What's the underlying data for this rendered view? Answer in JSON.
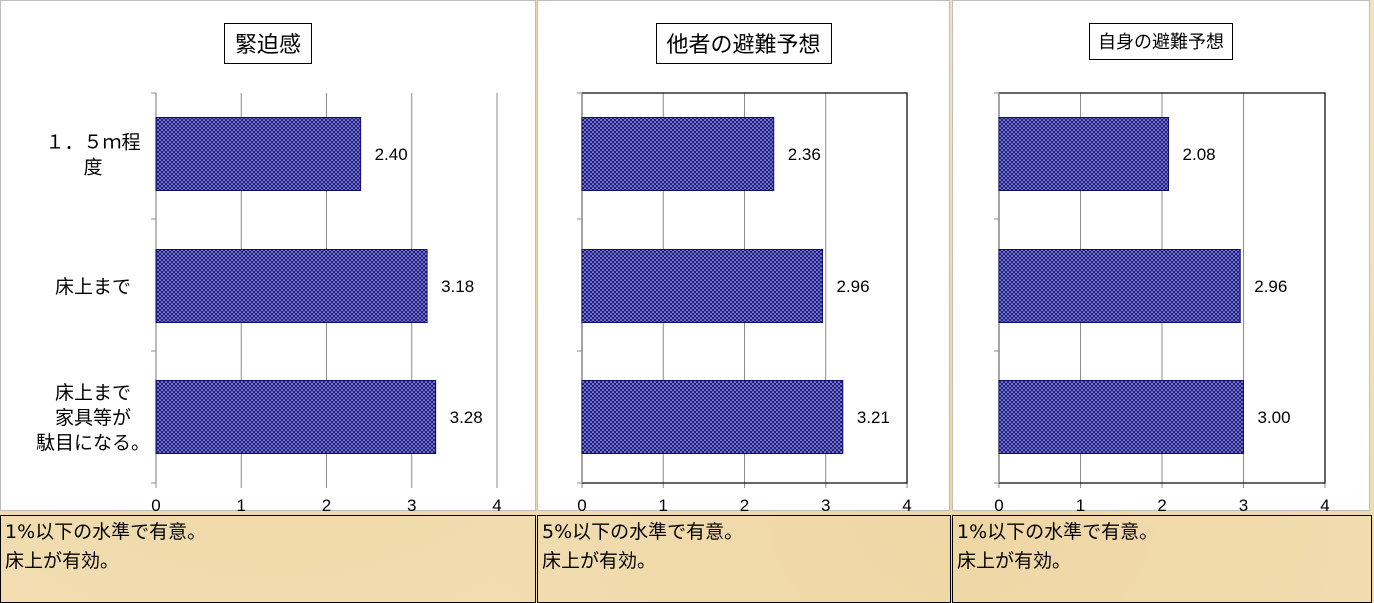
{
  "chart_data": [
    {
      "type": "bar",
      "orientation": "horizontal",
      "title": "緊迫感",
      "categories": [
        "１．５ｍ程度",
        "床上まで",
        "床上まで家具等が駄目になる。"
      ],
      "category_lines": [
        [
          "１．５ｍ程",
          "度"
        ],
        [
          "床上まで"
        ],
        [
          "床上まで",
          "家具等が",
          "駄目になる。"
        ]
      ],
      "values": [
        2.4,
        3.18,
        3.28
      ],
      "value_labels": [
        "2.40",
        "3.18",
        "3.28"
      ],
      "xlim": [
        0,
        4
      ],
      "xticks": [
        "0",
        "1",
        "2",
        "3",
        "4"
      ],
      "grid": true,
      "bar_color": "#1c1c8c",
      "note": [
        "1%以下の水準で有意。",
        "床上が有効。"
      ]
    },
    {
      "type": "bar",
      "orientation": "horizontal",
      "title": "他者の避難予想",
      "categories": [
        "１．５ｍ程度",
        "床上まで",
        "床上まで家具等が駄目になる。"
      ],
      "values": [
        2.36,
        2.96,
        3.21
      ],
      "value_labels": [
        "2.36",
        "2.96",
        "3.21"
      ],
      "xlim": [
        0,
        4
      ],
      "xticks": [
        "0",
        "1",
        "2",
        "3",
        "4"
      ],
      "grid": true,
      "bar_color": "#1c1c8c",
      "note": [
        "5%以下の水準で有意。",
        "床上が有効。"
      ]
    },
    {
      "type": "bar",
      "orientation": "horizontal",
      "title": "自身の避難予想",
      "categories": [
        "１．５ｍ程度",
        "床上まで",
        "床上まで家具等が駄目になる。"
      ],
      "values": [
        2.08,
        2.96,
        3.0
      ],
      "value_labels": [
        "2.08",
        "2.96",
        "3.00"
      ],
      "xlim": [
        0,
        4
      ],
      "xticks": [
        "0",
        "1",
        "2",
        "3",
        "4"
      ],
      "grid": true,
      "bar_color": "#1c1c8c",
      "note": [
        "1%以下の水準で有意。",
        "床上が有効。"
      ]
    }
  ]
}
